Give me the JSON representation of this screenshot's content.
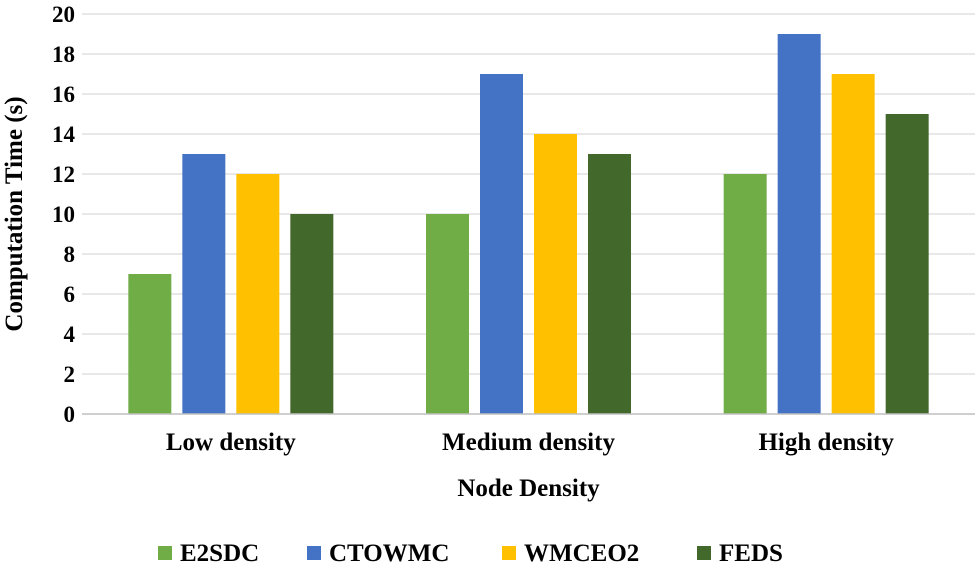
{
  "chart_data": {
    "type": "bar",
    "title": "",
    "xlabel": "Node Density",
    "ylabel": "Computation Time (s)",
    "categories": [
      "Low density",
      "Medium density",
      "High density"
    ],
    "ylim": [
      0,
      20
    ],
    "yticks": [
      0,
      2,
      4,
      6,
      8,
      10,
      12,
      14,
      16,
      18,
      20
    ],
    "grid": "horizontal",
    "legend_position": "bottom",
    "series": [
      {
        "name": "E2SDC",
        "color": "#70ad47",
        "values": [
          7,
          10,
          12
        ]
      },
      {
        "name": "CTOWMC",
        "color": "#4472c4",
        "values": [
          13,
          17,
          19
        ]
      },
      {
        "name": "WMCEO2",
        "color": "#ffc000",
        "values": [
          12,
          14,
          17
        ]
      },
      {
        "name": "FEDS",
        "color": "#43682b",
        "values": [
          10,
          13,
          15
        ]
      }
    ]
  }
}
